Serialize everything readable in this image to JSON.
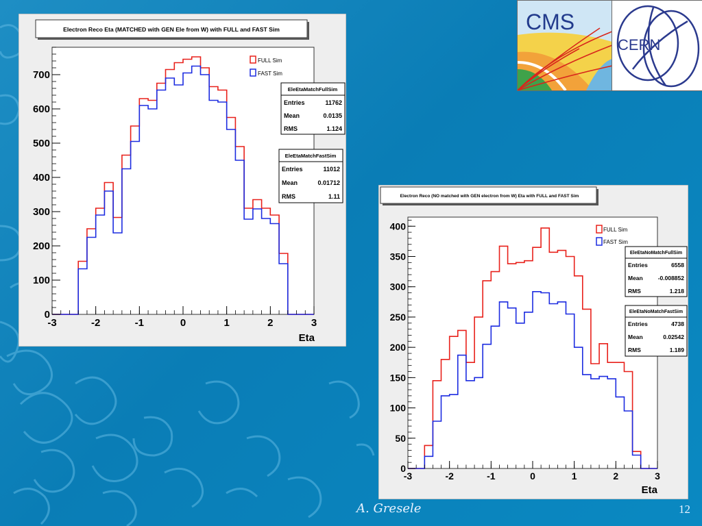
{
  "footer": {
    "author": "A. Gresele",
    "page": "12"
  },
  "logos": {
    "cms": "CMS",
    "cern": "CERN"
  },
  "colors": {
    "full": "#e8201a",
    "fast": "#1b2be0"
  },
  "chart_data": [
    {
      "type": "histogram",
      "title": "Electron Reco Eta (MATCHED with GEN Ele from W) with FULL and FAST Sim",
      "xlabel": "Eta",
      "ylabel": "",
      "xlim": [
        -3,
        3
      ],
      "ylim": [
        0,
        780
      ],
      "xticks": [
        -3,
        -2,
        -1,
        0,
        1,
        2,
        3
      ],
      "yticks": [
        0,
        100,
        200,
        300,
        400,
        500,
        600,
        700
      ],
      "bin_edges": [
        -3.0,
        -2.8,
        -2.6,
        -2.4,
        -2.2,
        -2.0,
        -1.8,
        -1.6,
        -1.4,
        -1.2,
        -1.0,
        -0.8,
        -0.6,
        -0.4,
        -0.2,
        0.0,
        0.2,
        0.4,
        0.6,
        0.8,
        1.0,
        1.2,
        1.4,
        1.6,
        1.8,
        2.0,
        2.2,
        2.4,
        2.6,
        2.8,
        3.0
      ],
      "legend": [
        "FULL Sim",
        "FAST Sim"
      ],
      "series": [
        {
          "name": "FULL Sim",
          "values": [
            0,
            0,
            0,
            155,
            250,
            310,
            385,
            283,
            465,
            550,
            630,
            625,
            675,
            715,
            735,
            745,
            752,
            720,
            665,
            655,
            575,
            490,
            310,
            335,
            310,
            290,
            178,
            0,
            0,
            0
          ]
        },
        {
          "name": "FAST Sim",
          "values": [
            0,
            0,
            0,
            133,
            225,
            290,
            360,
            238,
            425,
            505,
            610,
            600,
            655,
            690,
            670,
            705,
            725,
            700,
            625,
            620,
            540,
            450,
            278,
            308,
            280,
            265,
            148,
            0,
            0,
            0
          ]
        }
      ],
      "stats": [
        {
          "title": "EleEtaMatchFullSim",
          "rows": [
            {
              "k": "Entries",
              "v": "11762"
            },
            {
              "k": "Mean",
              "v": "0.0135"
            },
            {
              "k": "RMS",
              "v": "1.124"
            }
          ]
        },
        {
          "title": "EleEtaMatchFastSim",
          "rows": [
            {
              "k": "Entries",
              "v": "11012"
            },
            {
              "k": "Mean",
              "v": "0.01712"
            },
            {
              "k": "RMS",
              "v": "1.11"
            }
          ]
        }
      ]
    },
    {
      "type": "histogram",
      "title": "Electron Reco (NO matched with GEN electron from W) Eta with FULL and FAST Sim",
      "xlabel": "Eta",
      "ylabel": "",
      "xlim": [
        -3,
        3
      ],
      "ylim": [
        0,
        415
      ],
      "xticks": [
        -3,
        -2,
        -1,
        0,
        1,
        2,
        3
      ],
      "yticks": [
        0,
        50,
        100,
        150,
        200,
        250,
        300,
        350,
        400
      ],
      "bin_edges": [
        -3.0,
        -2.8,
        -2.6,
        -2.4,
        -2.2,
        -2.0,
        -1.8,
        -1.6,
        -1.4,
        -1.2,
        -1.0,
        -0.8,
        -0.6,
        -0.4,
        -0.2,
        0.0,
        0.2,
        0.4,
        0.6,
        0.8,
        1.0,
        1.2,
        1.4,
        1.6,
        1.8,
        2.0,
        2.2,
        2.4,
        2.6,
        2.8,
        3.0
      ],
      "legend": [
        "FULL Sim",
        "FAST Sim"
      ],
      "series": [
        {
          "name": "FULL Sim",
          "values": [
            0,
            0,
            38,
            145,
            180,
            218,
            228,
            175,
            250,
            310,
            325,
            367,
            338,
            340,
            343,
            365,
            397,
            357,
            360,
            350,
            318,
            263,
            173,
            206,
            175,
            175,
            160,
            28,
            0,
            0
          ]
        },
        {
          "name": "FAST Sim",
          "values": [
            0,
            0,
            20,
            78,
            120,
            122,
            187,
            145,
            150,
            205,
            235,
            275,
            265,
            240,
            258,
            292,
            290,
            272,
            275,
            255,
            200,
            155,
            148,
            152,
            148,
            118,
            95,
            22,
            0,
            0
          ]
        }
      ],
      "stats": [
        {
          "title": "EleEtaNoMatchFullSim",
          "rows": [
            {
              "k": "Entries",
              "v": "6558"
            },
            {
              "k": "Mean",
              "v": "-0.008852"
            },
            {
              "k": "RMS",
              "v": "1.218"
            }
          ]
        },
        {
          "title": "EleEtaNoMatchFastSim",
          "rows": [
            {
              "k": "Entries",
              "v": "4738"
            },
            {
              "k": "Mean",
              "v": "0.02542"
            },
            {
              "k": "RMS",
              "v": "1.189"
            }
          ]
        }
      ]
    }
  ]
}
